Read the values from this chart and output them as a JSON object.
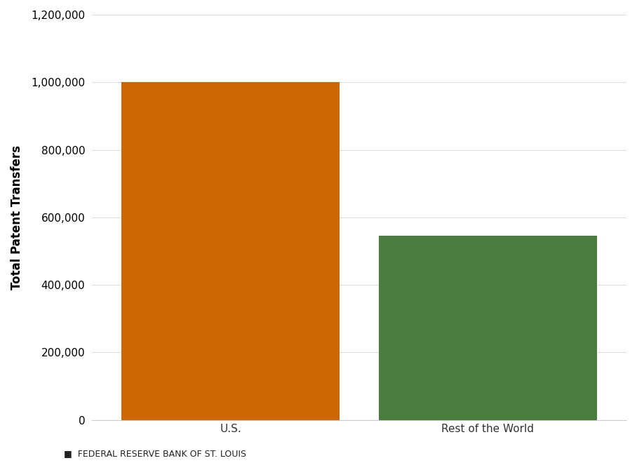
{
  "categories": [
    "U.S.",
    "Rest of the World"
  ],
  "values": [
    1000000,
    545000
  ],
  "bar_color_us": "#CC6600",
  "bar_color_row": "#4a7c3f",
  "ylabel": "Total Patent Transfers",
  "ylim": [
    0,
    1200000
  ],
  "yticks": [
    0,
    200000,
    400000,
    600000,
    800000,
    1000000,
    1200000
  ],
  "footer_text": "■  FEDERAL RESERVE BANK OF ST. LOUIS",
  "bar_width": 0.55,
  "x_positions": [
    0.35,
    1.0
  ],
  "xlim": [
    0.0,
    1.35
  ],
  "background_color": "#ffffff",
  "ylabel_fontsize": 12,
  "tick_fontsize": 11,
  "footer_fontsize": 9,
  "spine_color": "#cccccc",
  "grid_color": "#dddddd"
}
